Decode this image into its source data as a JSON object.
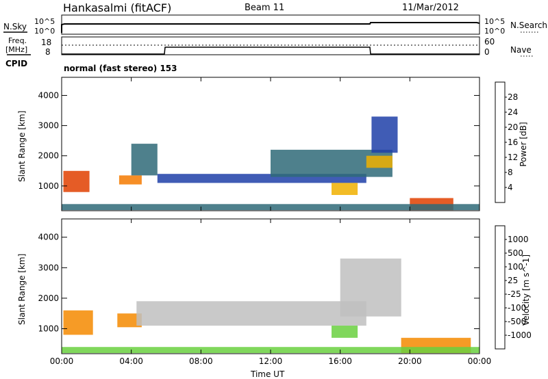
{
  "header": {
    "station": "Hankasalmi (fitACF)",
    "beam": "Beam 11",
    "date": "11/Mar/2012"
  },
  "nsky_panel": {
    "left_label": "N.Sky",
    "right_label": "N.Search",
    "y_ticks_top": "10^5",
    "y_ticks_bottom": "10^0",
    "y_ticks_top_right": "10^5",
    "y_ticks_bottom_right": "10^0"
  },
  "freq_panel": {
    "left_label_line1": "Freq.",
    "left_label_line2": "[MHz]",
    "left_ticks": [
      "18",
      "8"
    ],
    "right_label": "Nave",
    "right_ticks": [
      "60",
      "0"
    ]
  },
  "cpid": {
    "label": "CPID",
    "mode": "normal (fast stereo) 153"
  },
  "colors": {
    "power_scale": [
      "#0a14ff",
      "#1f3fa8",
      "#2f6a78",
      "#3e8a5a",
      "#7fd23a",
      "#f0b000",
      "#f57a00",
      "#e04000",
      "#e00000"
    ],
    "velocity_scale": [
      "#e00000",
      "#f05000",
      "#f58a00",
      "#f0b040",
      "#c0c0c0",
      "#6ad040",
      "#2f8a50",
      "#1f4f9a",
      "#1030d0"
    ]
  },
  "chart_data": [
    {
      "type": "heatmap",
      "name": "power",
      "ylabel": "Slant Range [km]",
      "x_ticks": [
        "00:00",
        "04:00",
        "08:00",
        "12:00",
        "16:00",
        "20:00",
        "00:00"
      ],
      "y_ticks": [
        1000,
        2000,
        3000,
        4000
      ],
      "ylim": [
        180,
        4600
      ],
      "xlim_hours": [
        0,
        24
      ],
      "colorbar_label": "Power [dB]",
      "colorbar_ticks": [
        4,
        8,
        12,
        16,
        20,
        24,
        28
      ],
      "colorbar_range": [
        0,
        32
      ],
      "regions": [
        {
          "t0": 0.1,
          "t1": 1.6,
          "r0": 800,
          "r1": 1500,
          "level": 27
        },
        {
          "t0": 3.3,
          "t1": 4.6,
          "r0": 1050,
          "r1": 1350,
          "level": 22
        },
        {
          "t0": 4.0,
          "t1": 5.5,
          "r0": 1350,
          "r1": 2400,
          "level": 8
        },
        {
          "t0": 5.5,
          "t1": 17.5,
          "r0": 1100,
          "r1": 1400,
          "level": 4
        },
        {
          "t0": 12.0,
          "t1": 19.0,
          "r0": 1300,
          "r1": 2200,
          "level": 10
        },
        {
          "t0": 15.5,
          "t1": 17.0,
          "r0": 700,
          "r1": 1100,
          "level": 18
        },
        {
          "t0": 17.5,
          "t1": 19.0,
          "r0": 1600,
          "r1": 2000,
          "level": 20
        },
        {
          "t0": 17.8,
          "t1": 19.3,
          "r0": 2100,
          "r1": 3300,
          "level": 6
        },
        {
          "t0": 20.0,
          "t1": 22.5,
          "r0": 200,
          "r1": 600,
          "level": 26
        },
        {
          "t0": 0.0,
          "t1": 24.0,
          "r0": 200,
          "r1": 400,
          "level": 8
        }
      ]
    },
    {
      "type": "heatmap",
      "name": "velocity",
      "xlabel": "Time UT",
      "ylabel": "Slant Range [km]",
      "x_ticks": [
        "00:00",
        "04:00",
        "08:00",
        "12:00",
        "16:00",
        "20:00",
        "00:00"
      ],
      "y_ticks": [
        1000,
        2000,
        3000,
        4000
      ],
      "ylim": [
        180,
        4600
      ],
      "xlim_hours": [
        0,
        24
      ],
      "colorbar_label": "Velocity [m s^-1]",
      "colorbar_ticks": [
        "1000",
        "500",
        "100",
        "25",
        "-25",
        "-100",
        "-500",
        "-1000"
      ],
      "regions": [
        {
          "t0": 0.1,
          "t1": 1.8,
          "r0": 800,
          "r1": 1600,
          "velocity": -400
        },
        {
          "t0": 3.2,
          "t1": 4.6,
          "r0": 1050,
          "r1": 1500,
          "velocity": -200
        },
        {
          "t0": 4.3,
          "t1": 17.5,
          "r0": 1100,
          "r1": 1900,
          "velocity": 0
        },
        {
          "t0": 15.5,
          "t1": 17.0,
          "r0": 700,
          "r1": 1100,
          "velocity": 80
        },
        {
          "t0": 16.0,
          "t1": 19.5,
          "r0": 1400,
          "r1": 3300,
          "velocity": 0
        },
        {
          "t0": 19.5,
          "t1": 23.5,
          "r0": 200,
          "r1": 700,
          "velocity": -150
        },
        {
          "t0": 0.0,
          "t1": 24.0,
          "r0": 200,
          "r1": 400,
          "velocity": 60
        }
      ]
    }
  ]
}
